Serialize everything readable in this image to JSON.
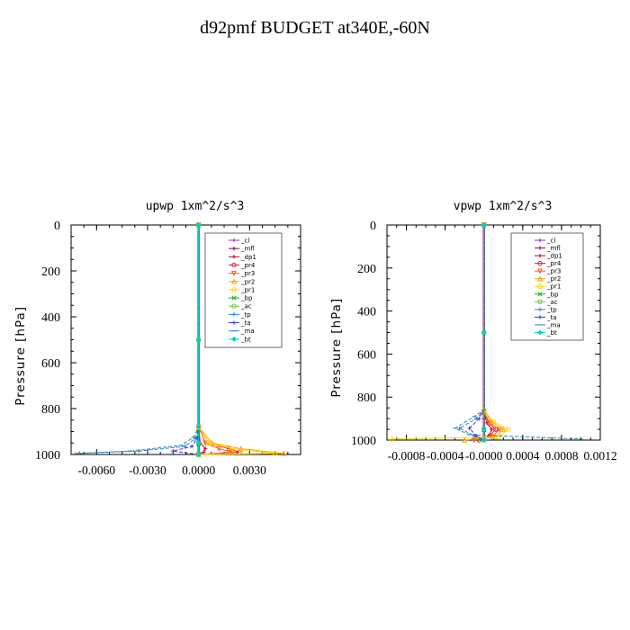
{
  "page": {
    "title": "d92pmf  BUDGET at340E,-60N"
  },
  "chart_data": [
    {
      "type": "line",
      "title": "upwp  1xm^2/s^3",
      "xlabel": "",
      "ylabel": "Pressure [hPa]",
      "ylim": [
        1000,
        0
      ],
      "xlim": [
        -0.0075,
        0.006
      ],
      "y_ticks": [
        0,
        200,
        400,
        600,
        800,
        1000
      ],
      "x_ticks": [
        -0.006,
        -0.003,
        0.0,
        0.003
      ],
      "x_tick_labels": [
        "-0.0060",
        "-0.0030",
        "0.0000",
        "0.0030"
      ],
      "y_tick_labels": [
        "0",
        "200",
        "400",
        "600",
        "800",
        "1000"
      ],
      "legend_position": "top-right",
      "series": [
        {
          "name": "_cl",
          "color": "#8a2be2",
          "marker": "+",
          "x": [
            0,
            0,
            0,
            0,
            0
          ],
          "y": [
            0,
            500,
            900,
            960,
            1000
          ]
        },
        {
          "name": "_mfl",
          "color": "#8b0a50",
          "marker": "+",
          "x": [
            0,
            0,
            0,
            0,
            0
          ],
          "y": [
            0,
            500,
            900,
            960,
            1000
          ]
        },
        {
          "name": "_dp1",
          "color": "#b0103a",
          "marker": "+",
          "x": [
            0,
            0,
            0.0001,
            0.0004,
            0.0003,
            0.0
          ],
          "y": [
            0,
            880,
            950,
            975,
            990,
            1000
          ]
        },
        {
          "name": "_pr4",
          "color": "#e0202a",
          "marker": "o",
          "x": [
            0,
            0,
            0.0006,
            0.0018,
            0.0024,
            0.0
          ],
          "y": [
            0,
            880,
            950,
            975,
            990,
            1000
          ]
        },
        {
          "name": "_pr3",
          "color": "#ff5a1a",
          "marker": "v",
          "x": [
            0,
            0,
            0.0004,
            0.0012,
            0.002,
            0.0
          ],
          "y": [
            0,
            880,
            950,
            975,
            990,
            1000
          ]
        },
        {
          "name": "_pr2",
          "color": "#ffa500",
          "marker": "^",
          "x": [
            0,
            0,
            0.0008,
            0.0025,
            0.005,
            0.0
          ],
          "y": [
            0,
            880,
            950,
            975,
            995,
            1000
          ]
        },
        {
          "name": "_pr1",
          "color": "#ffd700",
          "marker": "o",
          "x": [
            0,
            0,
            0.0006,
            0.002,
            0.0045,
            0.0
          ],
          "y": [
            0,
            880,
            950,
            975,
            995,
            1000
          ]
        },
        {
          "name": "_bp",
          "color": "#22aa22",
          "marker": "x",
          "x": [
            0,
            0,
            0,
            0
          ],
          "y": [
            0,
            500,
            950,
            1000
          ]
        },
        {
          "name": "_ac",
          "color": "#66cc33",
          "marker": "o",
          "x": [
            0,
            0,
            0,
            0
          ],
          "y": [
            0,
            500,
            950,
            1000
          ]
        },
        {
          "name": "_tp",
          "color": "#2a7fd4",
          "marker": "+",
          "x": [
            0,
            0,
            -0.0002,
            -0.0008,
            -0.0035,
            -0.007
          ],
          "y": [
            0,
            880,
            930,
            965,
            985,
            995
          ]
        },
        {
          "name": "_ta",
          "color": "#3a3ad8",
          "marker": "+",
          "x": [
            0,
            0,
            -0.0001,
            -0.0004,
            -0.0015,
            -0.0
          ],
          "y": [
            0,
            880,
            930,
            965,
            985,
            1000
          ]
        },
        {
          "name": "_ma",
          "color": "#2a8aa8",
          "marker": "-",
          "x": [
            0,
            0,
            -0.0003,
            -0.001,
            -0.004,
            -0.0072
          ],
          "y": [
            0,
            880,
            925,
            960,
            985,
            995
          ]
        },
        {
          "name": "_bt",
          "color": "#00ced1",
          "marker": "D",
          "x": [
            0,
            0,
            0,
            0
          ],
          "y": [
            0,
            500,
            950,
            1000
          ]
        }
      ]
    },
    {
      "type": "line",
      "title": "vpwp  1xm^2/s^3",
      "xlabel": "",
      "ylabel": "Pressure [hPa]",
      "ylim": [
        1000,
        0
      ],
      "xlim": [
        -0.001,
        0.0012
      ],
      "y_ticks": [
        0,
        200,
        400,
        600,
        800,
        1000
      ],
      "x_ticks": [
        -0.0008,
        -0.0004,
        0.0,
        0.0004,
        0.0008,
        0.0012
      ],
      "x_tick_labels": [
        "-0.0008",
        "-0.0004",
        "-0.0000",
        "0.0004",
        "0.0008",
        "0.0012"
      ],
      "y_tick_labels": [
        "0",
        "200",
        "400",
        "600",
        "800",
        "1000"
      ],
      "legend_position": "top-right",
      "series": [
        {
          "name": "_cl",
          "color": "#8a2be2",
          "marker": "+",
          "x": [
            0,
            0,
            0,
            0,
            0
          ],
          "y": [
            0,
            500,
            900,
            960,
            1000
          ]
        },
        {
          "name": "_mfl",
          "color": "#8b0a50",
          "marker": "+",
          "x": [
            0,
            0,
            0,
            0,
            0
          ],
          "y": [
            0,
            500,
            900,
            960,
            1000
          ]
        },
        {
          "name": "_dp1",
          "color": "#b0103a",
          "marker": "+",
          "x": [
            0,
            0,
            3e-05,
            8e-05,
            5e-05,
            0.0
          ],
          "y": [
            0,
            870,
            920,
            950,
            980,
            1000
          ]
        },
        {
          "name": "_pr4",
          "color": "#e0202a",
          "marker": "o",
          "x": [
            0,
            0,
            5e-05,
            0.00012,
            6e-05,
            -5e-05
          ],
          "y": [
            0,
            870,
            920,
            950,
            980,
            1000
          ]
        },
        {
          "name": "_pr3",
          "color": "#ff5a1a",
          "marker": "v",
          "x": [
            0,
            0,
            6e-05,
            0.00016,
            8e-05,
            -0.0001
          ],
          "y": [
            0,
            870,
            920,
            950,
            985,
            1000
          ]
        },
        {
          "name": "_pr2",
          "color": "#ffa500",
          "marker": "^",
          "x": [
            0,
            0,
            8e-05,
            0.0002,
            0.00012,
            -0.0002
          ],
          "y": [
            0,
            860,
            915,
            950,
            985,
            1000
          ]
        },
        {
          "name": "_pr1",
          "color": "#ffd700",
          "marker": "o",
          "x": [
            0,
            0,
            0.0001,
            0.00025,
            0.00015,
            -0.00095
          ],
          "y": [
            0,
            860,
            915,
            950,
            985,
            995
          ]
        },
        {
          "name": "_bp",
          "color": "#22aa22",
          "marker": "x",
          "x": [
            0,
            0,
            0,
            0
          ],
          "y": [
            0,
            500,
            950,
            1000
          ]
        },
        {
          "name": "_ac",
          "color": "#66cc33",
          "marker": "o",
          "x": [
            0,
            0,
            0,
            0
          ],
          "y": [
            0,
            500,
            950,
            1000
          ]
        },
        {
          "name": "_tp",
          "color": "#2a7fd4",
          "marker": "+",
          "x": [
            0,
            0,
            -8e-05,
            -0.00025,
            -0.0001,
            0.0
          ],
          "y": [
            0,
            860,
            900,
            945,
            980,
            1000
          ]
        },
        {
          "name": "_ta",
          "color": "#3a3ad8",
          "marker": "+",
          "x": [
            0,
            0,
            -5e-05,
            -0.00015,
            -8e-05,
            0.0
          ],
          "y": [
            0,
            860,
            900,
            945,
            980,
            1000
          ]
        },
        {
          "name": "_ma",
          "color": "#2a8aa8",
          "marker": "-",
          "x": [
            0,
            0,
            -0.0001,
            -0.0003,
            -0.00015,
            0.001
          ],
          "y": [
            0,
            860,
            890,
            945,
            975,
            995
          ]
        },
        {
          "name": "_bt",
          "color": "#00ced1",
          "marker": "D",
          "x": [
            0,
            0,
            0,
            0
          ],
          "y": [
            0,
            500,
            950,
            1000
          ]
        }
      ]
    }
  ]
}
